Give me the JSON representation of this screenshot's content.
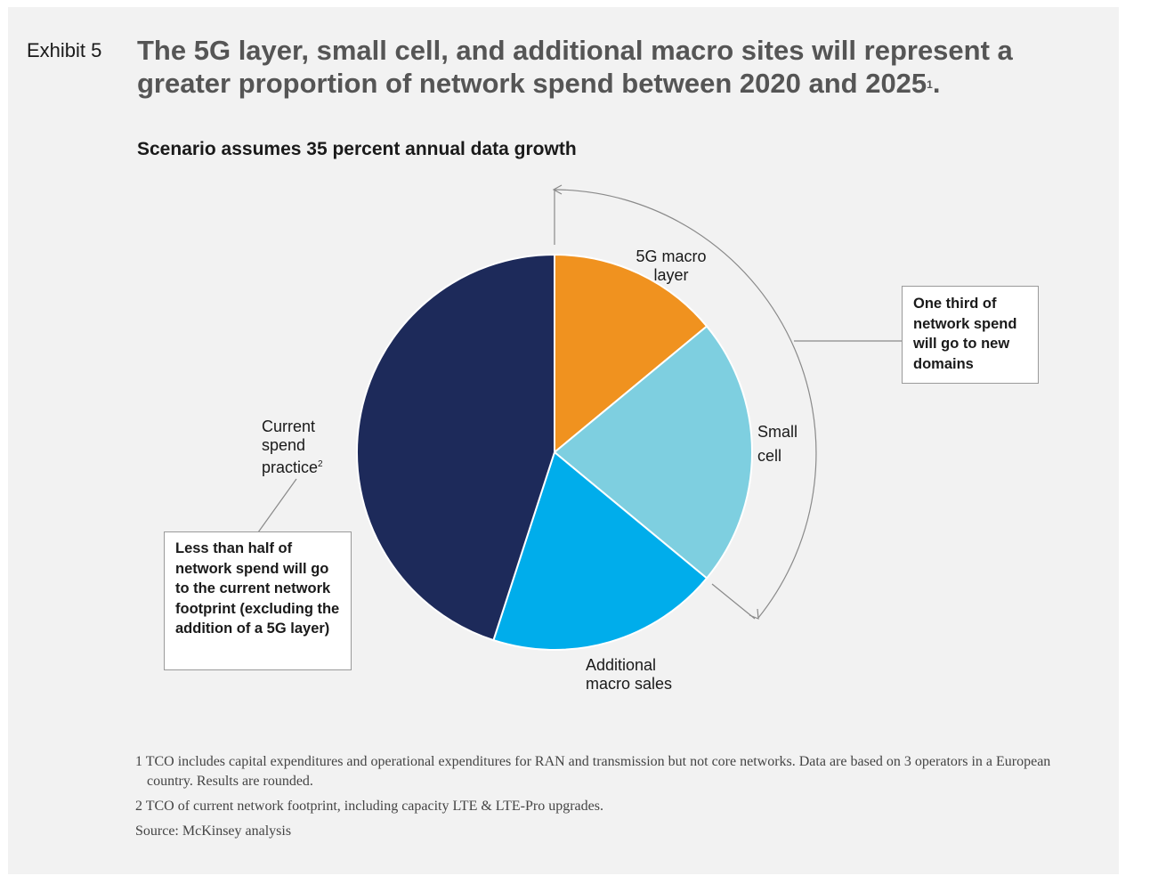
{
  "header": {
    "exhibit": "Exhibit 5",
    "title": "The 5G layer, small cell, and additional macro sites will represent a greater proportion of network spend between 2020 and 2025",
    "title_footnote": "1",
    "subtitle": "Scenario assumes 35 percent annual data growth"
  },
  "chart_data": {
    "type": "pie",
    "title": "Scenario assumes 35 percent annual data growth",
    "slices": [
      {
        "label": "5G macro layer",
        "value": 14,
        "color": "#f0921f"
      },
      {
        "label": "Small cell",
        "value": 22,
        "color": "#7ecfe0"
      },
      {
        "label": "Additional macro sales",
        "value": 19,
        "color": "#00adeb"
      },
      {
        "label": "Current spend practice",
        "label_footnote": "2",
        "value": 45,
        "color": "#1d2a5a"
      }
    ]
  },
  "labels": {
    "macro_5g": [
      "5G macro",
      "layer"
    ],
    "small_cell": [
      "Small",
      "cell"
    ],
    "additional_macro": [
      "Additional",
      "macro sales"
    ],
    "current_spend": [
      "Current",
      "spend",
      "practice"
    ],
    "current_spend_footnote": "2"
  },
  "callouts": {
    "new_domains": "One third of network spend will go to new domains",
    "current_footprint": "Less than half of network spend will go to the current network footprint (excluding the addition of a 5G layer)"
  },
  "footnotes": {
    "note1": "1 TCO includes capital expenditures and operational expenditures for RAN and transmission but not core networks. Data are based on 3 operators in a European country. Results are rounded.",
    "note2": "2 TCO of current network footprint, including capacity LTE & LTE-Pro upgrades.",
    "source": "Source: McKinsey analysis"
  },
  "colors": {
    "panel_bg": "#f2f2f2",
    "title_gray": "#555555",
    "orange": "#f0921f",
    "light_blue": "#7ecfe0",
    "bright_blue": "#00adeb",
    "navy": "#1d2a5a"
  }
}
